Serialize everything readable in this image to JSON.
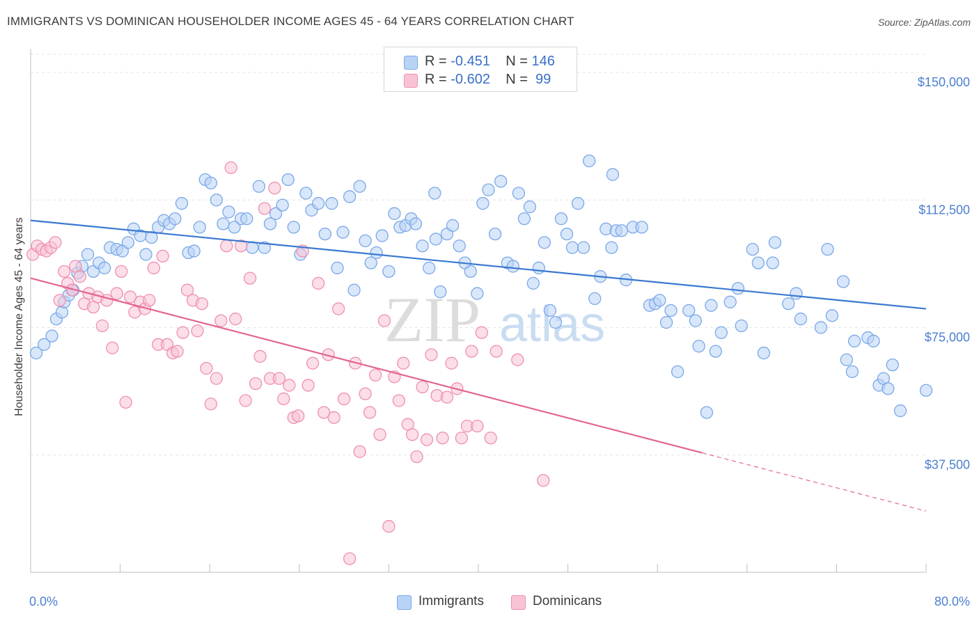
{
  "title": "IMMIGRANTS VS DOMINICAN HOUSEHOLDER INCOME AGES 45 - 64 YEARS CORRELATION CHART",
  "source": "Source: ZipAtlas.com",
  "watermark": {
    "zip": "ZIP",
    "atlas": "atlas"
  },
  "legend": {
    "r_label": "R =",
    "n_label": "N =",
    "rows": [
      {
        "name": "Immigrants",
        "r": "-0.451",
        "n": "146",
        "color": "#7aa8e8",
        "fill": "#b9d3f5"
      },
      {
        "name": "Dominicans",
        "r": "-0.602",
        "n": "99",
        "color": "#ef8fb0",
        "fill": "#f8c3d5"
      }
    ]
  },
  "bottom_legend": [
    {
      "label": "Immigrants"
    },
    {
      "label": "Dominicans"
    }
  ],
  "chart_data": {
    "type": "scatter",
    "xlabel": "",
    "ylabel": "Householder Income Ages 45 - 64 years",
    "xlim": [
      0,
      80
    ],
    "ylim": [
      3000,
      157000
    ],
    "x_tick_labels": [
      "0.0%",
      "80.0%"
    ],
    "y_ticks": [
      {
        "value": 37500,
        "label": "$37,500"
      },
      {
        "value": 75000,
        "label": "$75,000"
      },
      {
        "value": 112500,
        "label": "$112,500"
      },
      {
        "value": 150000,
        "label": "$150,000"
      }
    ],
    "grid": "horizontal dashed",
    "legend_position": "top-center",
    "series": [
      {
        "name": "Immigrants",
        "color": "#3a78d0",
        "fill": "#b9d3f5",
        "stroke": "#7aa8e8",
        "trend": {
          "x1": 0,
          "y1": 106500,
          "x2": 80,
          "y2": 80500,
          "dashed_from": null
        },
        "points": [
          [
            0.5,
            67500
          ],
          [
            1.2,
            70000
          ],
          [
            1.9,
            72500
          ],
          [
            2.3,
            77500
          ],
          [
            2.8,
            79500
          ],
          [
            3.0,
            82500
          ],
          [
            3.4,
            84500
          ],
          [
            3.8,
            86000
          ],
          [
            4.2,
            91000
          ],
          [
            4.6,
            93000
          ],
          [
            5.1,
            96500
          ],
          [
            5.6,
            91500
          ],
          [
            6.1,
            94000
          ],
          [
            6.6,
            92500
          ],
          [
            7.1,
            98500
          ],
          [
            7.7,
            98000
          ],
          [
            8.2,
            97500
          ],
          [
            8.7,
            100000
          ],
          [
            9.2,
            104000
          ],
          [
            9.8,
            102000
          ],
          [
            10.3,
            96500
          ],
          [
            10.8,
            101500
          ],
          [
            11.4,
            104500
          ],
          [
            11.9,
            106500
          ],
          [
            12.4,
            105500
          ],
          [
            12.9,
            107000
          ],
          [
            13.5,
            111500
          ],
          [
            14.1,
            97000
          ],
          [
            14.6,
            97500
          ],
          [
            15.1,
            104500
          ],
          [
            15.6,
            118500
          ],
          [
            16.1,
            117500
          ],
          [
            16.6,
            112500
          ],
          [
            17.2,
            105500
          ],
          [
            17.7,
            109000
          ],
          [
            18.2,
            104500
          ],
          [
            18.8,
            107000
          ],
          [
            19.3,
            107000
          ],
          [
            19.8,
            98500
          ],
          [
            20.4,
            116500
          ],
          [
            20.9,
            98500
          ],
          [
            21.4,
            105500
          ],
          [
            21.9,
            108500
          ],
          [
            22.5,
            111000
          ],
          [
            23.0,
            118500
          ],
          [
            23.5,
            104500
          ],
          [
            24.1,
            96500
          ],
          [
            24.6,
            114500
          ],
          [
            25.1,
            109500
          ],
          [
            25.7,
            111500
          ],
          [
            26.3,
            102500
          ],
          [
            26.9,
            111500
          ],
          [
            27.4,
            92500
          ],
          [
            27.9,
            103000
          ],
          [
            28.5,
            113500
          ],
          [
            28.9,
            86000
          ],
          [
            29.4,
            116500
          ],
          [
            29.9,
            100500
          ],
          [
            30.4,
            94000
          ],
          [
            30.9,
            97000
          ],
          [
            31.4,
            102000
          ],
          [
            32.0,
            91500
          ],
          [
            32.5,
            108500
          ],
          [
            33.0,
            104500
          ],
          [
            33.5,
            105000
          ],
          [
            34.0,
            107000
          ],
          [
            34.4,
            105500
          ],
          [
            35.0,
            99000
          ],
          [
            35.6,
            92500
          ],
          [
            36.1,
            114500
          ],
          [
            36.6,
            85500
          ],
          [
            37.2,
            102500
          ],
          [
            37.7,
            105000
          ],
          [
            38.3,
            99000
          ],
          [
            38.8,
            94000
          ],
          [
            39.3,
            91500
          ],
          [
            39.9,
            85000
          ],
          [
            40.4,
            111500
          ],
          [
            40.9,
            115500
          ],
          [
            41.5,
            102500
          ],
          [
            42.0,
            118000
          ],
          [
            42.6,
            94000
          ],
          [
            43.1,
            93000
          ],
          [
            43.6,
            114500
          ],
          [
            44.1,
            107000
          ],
          [
            44.6,
            110500
          ],
          [
            44.9,
            88000
          ],
          [
            45.4,
            92500
          ],
          [
            45.9,
            100000
          ],
          [
            46.4,
            80000
          ],
          [
            46.9,
            76500
          ],
          [
            47.4,
            107000
          ],
          [
            47.9,
            102500
          ],
          [
            48.4,
            98500
          ],
          [
            48.9,
            111500
          ],
          [
            49.4,
            98500
          ],
          [
            49.9,
            124000
          ],
          [
            50.4,
            83500
          ],
          [
            50.9,
            90000
          ],
          [
            51.4,
            104000
          ],
          [
            51.9,
            98500
          ],
          [
            52.3,
            103500
          ],
          [
            52.8,
            103500
          ],
          [
            53.2,
            89000
          ],
          [
            53.8,
            104500
          ],
          [
            54.6,
            104500
          ],
          [
            55.3,
            81500
          ],
          [
            55.8,
            82000
          ],
          [
            56.2,
            83000
          ],
          [
            56.8,
            76500
          ],
          [
            57.2,
            80000
          ],
          [
            57.8,
            62000
          ],
          [
            58.8,
            80000
          ],
          [
            59.4,
            77000
          ],
          [
            59.7,
            69500
          ],
          [
            60.4,
            50000
          ],
          [
            60.8,
            81500
          ],
          [
            61.2,
            68000
          ],
          [
            61.7,
            73500
          ],
          [
            62.5,
            82500
          ],
          [
            63.2,
            86500
          ],
          [
            63.5,
            75500
          ],
          [
            64.5,
            98000
          ],
          [
            65.0,
            94000
          ],
          [
            65.5,
            67500
          ],
          [
            66.3,
            94000
          ],
          [
            66.5,
            100000
          ],
          [
            67.7,
            82000
          ],
          [
            68.4,
            85000
          ],
          [
            68.8,
            77500
          ],
          [
            70.6,
            75000
          ],
          [
            71.2,
            98000
          ],
          [
            71.6,
            78500
          ],
          [
            72.6,
            88500
          ],
          [
            72.9,
            65500
          ],
          [
            73.4,
            62000
          ],
          [
            73.6,
            71000
          ],
          [
            74.8,
            72000
          ],
          [
            75.3,
            71000
          ],
          [
            75.8,
            58000
          ],
          [
            76.2,
            60000
          ],
          [
            76.6,
            57000
          ],
          [
            77.0,
            64000
          ],
          [
            77.7,
            50500
          ],
          [
            80.0,
            56500
          ],
          [
            52.0,
            120000
          ],
          [
            36.2,
            101000
          ]
        ]
      },
      {
        "name": "Dominicans",
        "color": "#e2658f",
        "fill": "#f8c3d5",
        "stroke": "#ef8fb0",
        "trend": {
          "x1": 0,
          "y1": 89500,
          "x2": 80,
          "y2": 21000,
          "dashed_from": 60
        },
        "points": [
          [
            0.2,
            96500
          ],
          [
            0.6,
            99000
          ],
          [
            1.0,
            98000
          ],
          [
            1.4,
            97500
          ],
          [
            1.8,
            98500
          ],
          [
            2.2,
            100000
          ],
          [
            2.6,
            83000
          ],
          [
            3.0,
            91500
          ],
          [
            3.3,
            88000
          ],
          [
            3.7,
            86000
          ],
          [
            4.0,
            93000
          ],
          [
            4.4,
            90000
          ],
          [
            4.8,
            82000
          ],
          [
            5.2,
            85000
          ],
          [
            5.6,
            81000
          ],
          [
            6.0,
            84000
          ],
          [
            6.4,
            75500
          ],
          [
            6.8,
            83000
          ],
          [
            7.3,
            69000
          ],
          [
            7.7,
            85000
          ],
          [
            8.1,
            91500
          ],
          [
            8.5,
            53000
          ],
          [
            8.9,
            84000
          ],
          [
            9.3,
            79500
          ],
          [
            9.8,
            82500
          ],
          [
            10.2,
            80500
          ],
          [
            10.6,
            83000
          ],
          [
            11.0,
            92500
          ],
          [
            11.4,
            70000
          ],
          [
            11.8,
            96000
          ],
          [
            12.2,
            70000
          ],
          [
            12.7,
            67500
          ],
          [
            13.1,
            68000
          ],
          [
            13.6,
            73500
          ],
          [
            14.0,
            86000
          ],
          [
            14.5,
            83000
          ],
          [
            14.9,
            74000
          ],
          [
            15.3,
            82000
          ],
          [
            15.7,
            63000
          ],
          [
            16.1,
            52500
          ],
          [
            16.6,
            60000
          ],
          [
            17.0,
            77000
          ],
          [
            17.5,
            99000
          ],
          [
            17.9,
            122000
          ],
          [
            18.3,
            77500
          ],
          [
            18.8,
            99000
          ],
          [
            19.2,
            53500
          ],
          [
            19.6,
            89500
          ],
          [
            20.1,
            58500
          ],
          [
            20.5,
            66500
          ],
          [
            20.9,
            110000
          ],
          [
            21.4,
            60000
          ],
          [
            21.8,
            116000
          ],
          [
            22.2,
            60000
          ],
          [
            22.6,
            54000
          ],
          [
            23.1,
            58000
          ],
          [
            23.5,
            48500
          ],
          [
            23.9,
            49000
          ],
          [
            24.3,
            97500
          ],
          [
            24.8,
            58000
          ],
          [
            25.2,
            64500
          ],
          [
            25.7,
            88000
          ],
          [
            26.2,
            50000
          ],
          [
            26.6,
            67000
          ],
          [
            27.1,
            48500
          ],
          [
            27.5,
            80500
          ],
          [
            28.0,
            54000
          ],
          [
            28.5,
            7000
          ],
          [
            29.0,
            64500
          ],
          [
            29.4,
            38500
          ],
          [
            29.9,
            55500
          ],
          [
            30.3,
            50000
          ],
          [
            30.8,
            61000
          ],
          [
            31.2,
            43500
          ],
          [
            31.6,
            77000
          ],
          [
            32.0,
            16500
          ],
          [
            32.5,
            60500
          ],
          [
            32.9,
            53500
          ],
          [
            33.3,
            64500
          ],
          [
            33.7,
            46500
          ],
          [
            34.1,
            43500
          ],
          [
            34.5,
            37000
          ],
          [
            35.0,
            57500
          ],
          [
            35.4,
            42000
          ],
          [
            35.8,
            67000
          ],
          [
            36.3,
            55000
          ],
          [
            36.8,
            42500
          ],
          [
            37.2,
            54500
          ],
          [
            37.6,
            64500
          ],
          [
            38.1,
            57000
          ],
          [
            38.5,
            42500
          ],
          [
            39.0,
            46000
          ],
          [
            39.4,
            68000
          ],
          [
            39.9,
            46000
          ],
          [
            40.3,
            73500
          ],
          [
            41.1,
            42500
          ],
          [
            41.6,
            68000
          ],
          [
            43.5,
            65500
          ],
          [
            45.8,
            30000
          ]
        ]
      }
    ]
  }
}
